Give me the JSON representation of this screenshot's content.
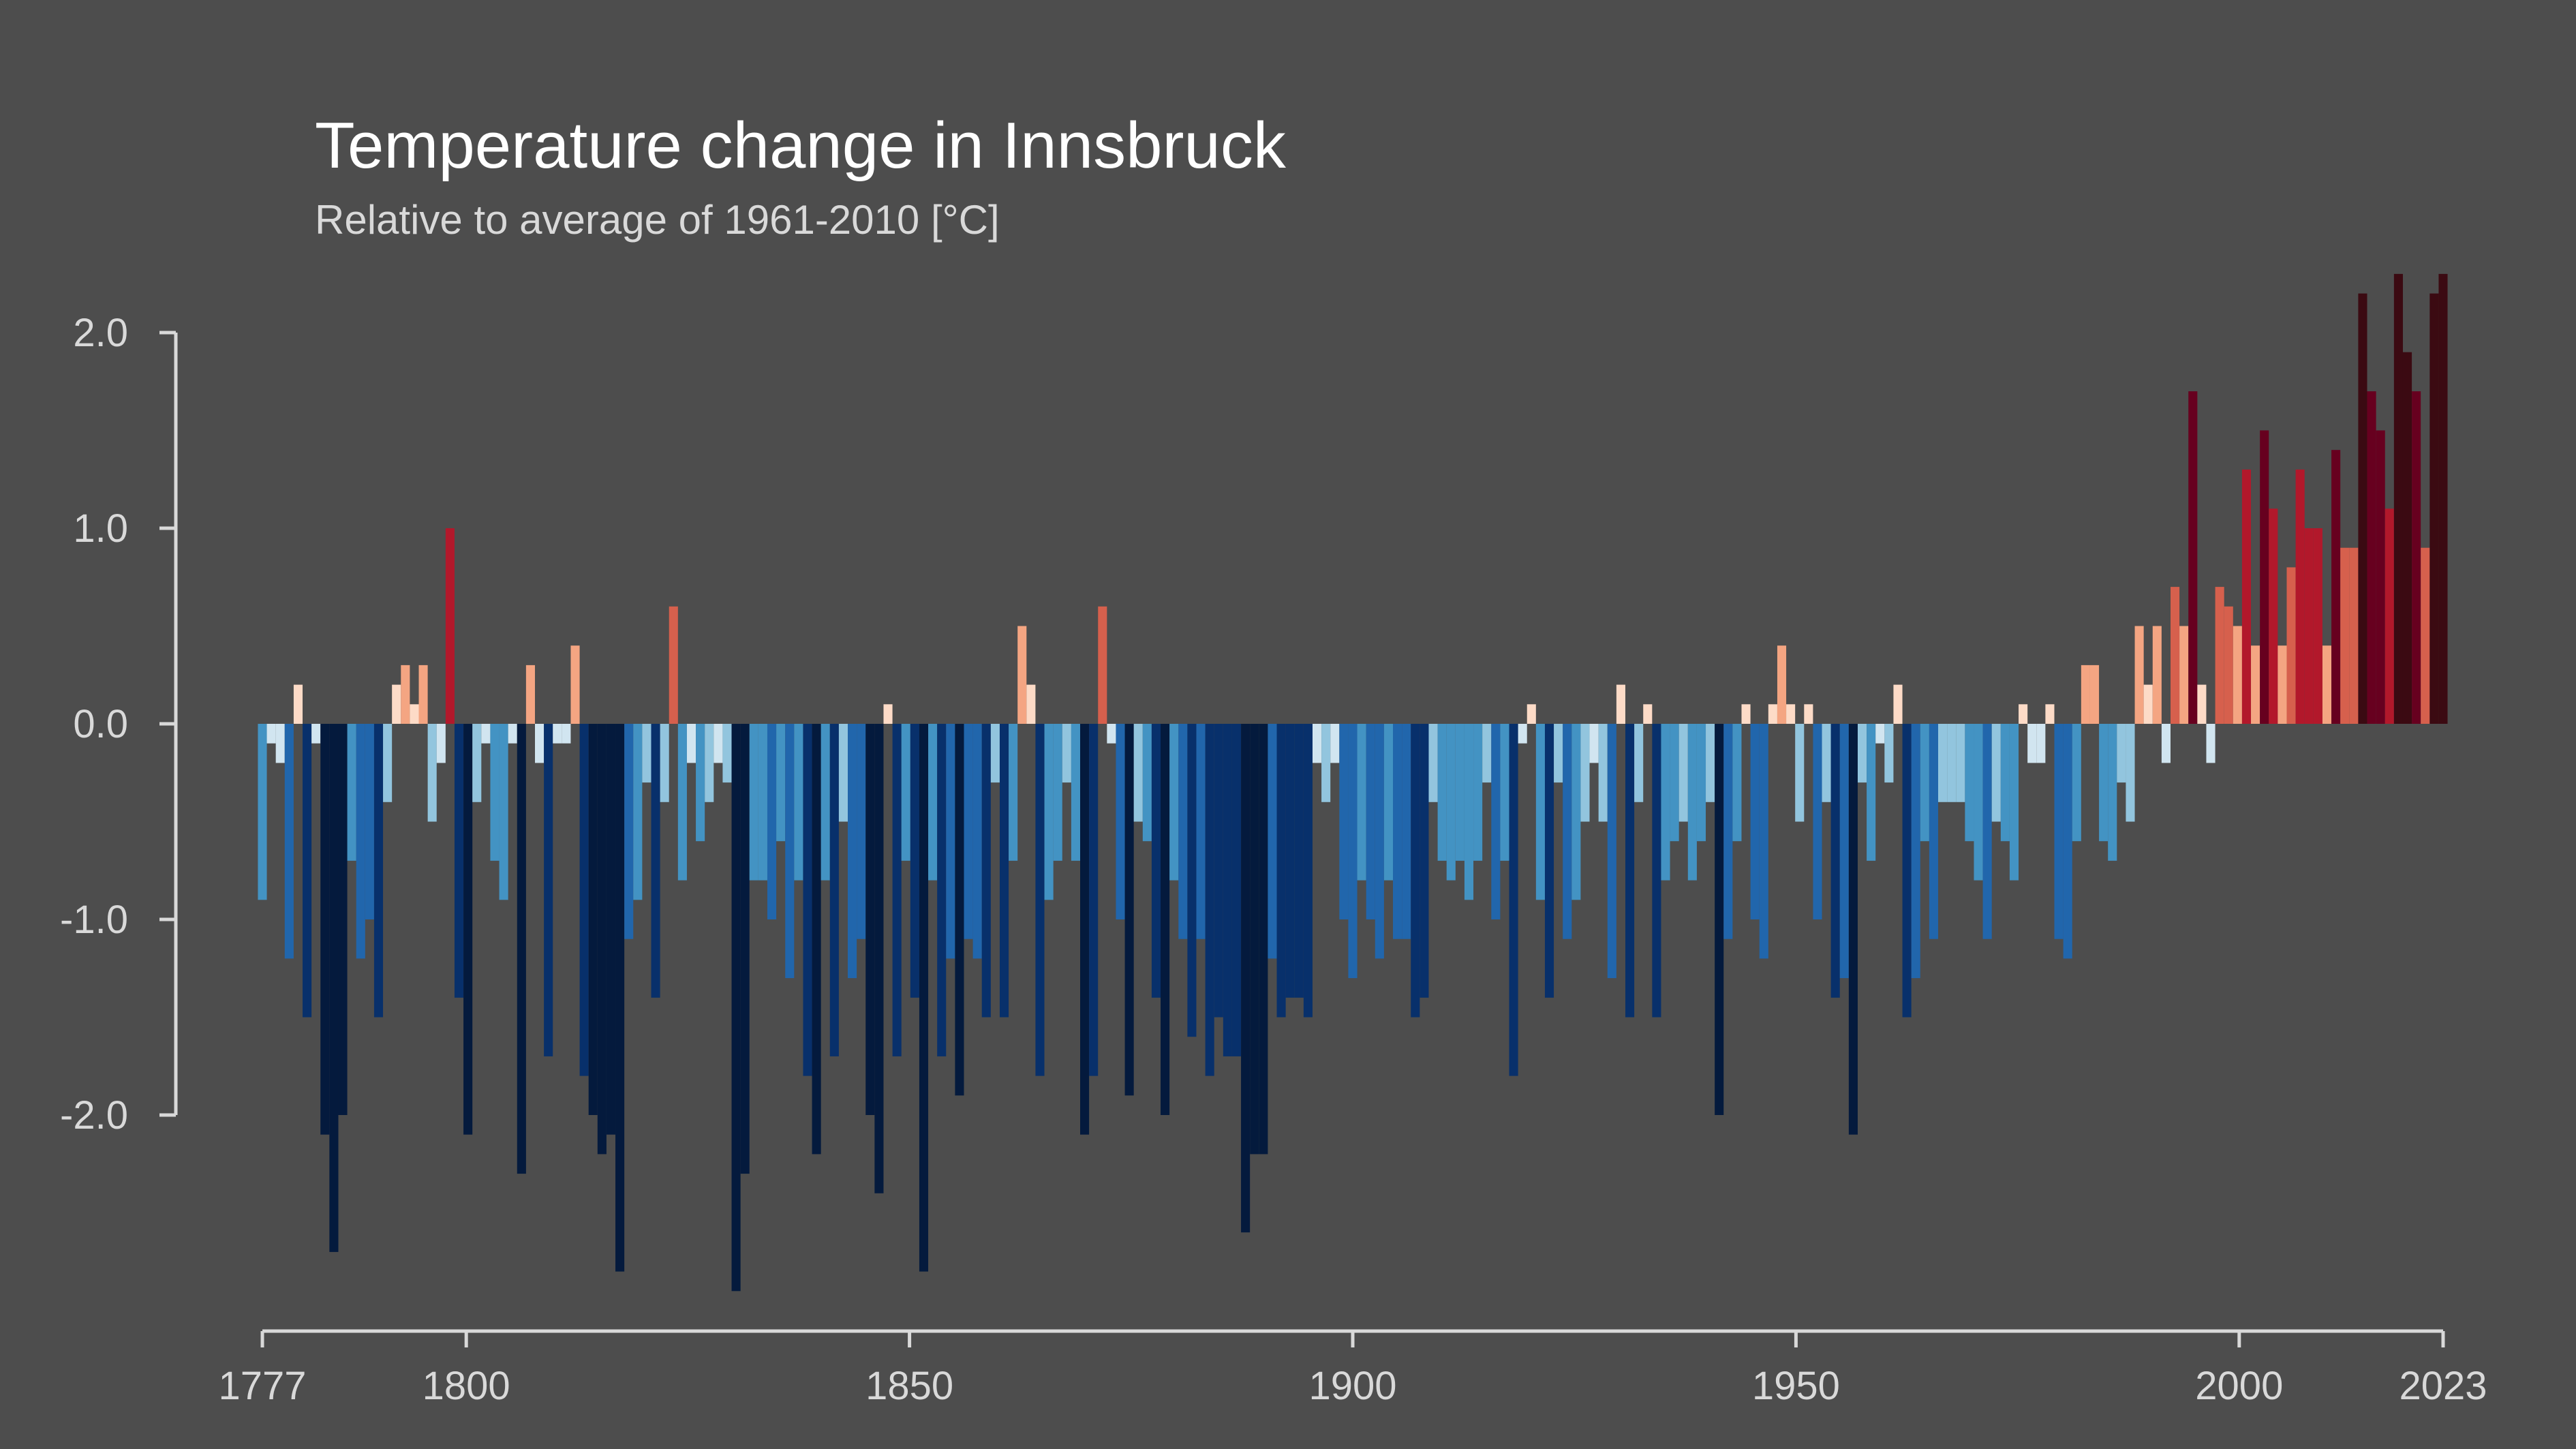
{
  "chart_data": {
    "type": "bar",
    "title": "Temperature change in Innsbruck",
    "subtitle": "Relative to average of 1961-2010  [°C]",
    "x_start": 1777,
    "x_end": 2023,
    "x_ticks": [
      "1777",
      "1800",
      "1850",
      "1900",
      "1950",
      "2000",
      "2023"
    ],
    "y_ticks": [
      "2.0",
      "1.0",
      "0.0",
      "-1.0",
      "-2.0"
    ],
    "ylim": [
      -3.1,
      2.35
    ],
    "colors": {
      "background": "#4d4d4d",
      "axis": "#d9d9d9",
      "warm_scale": [
        "#fddbc7",
        "#f4a582",
        "#d6604d",
        "#b2182b",
        "#67001f",
        "#3b0a12"
      ],
      "cool_scale": [
        "#d1e5f0",
        "#92c5de",
        "#4393c3",
        "#2166ac",
        "#08306b",
        "#041a3d"
      ]
    },
    "values": [
      -0.9,
      -0.1,
      -0.2,
      -1.2,
      0.2,
      -1.5,
      -0.1,
      -2.1,
      -2.7,
      -2.0,
      -0.7,
      -1.2,
      -1.0,
      -1.5,
      -0.4,
      0.2,
      0.3,
      0.1,
      0.3,
      -0.5,
      -0.2,
      1.0,
      -1.4,
      -2.1,
      -0.4,
      -0.1,
      -0.7,
      -0.9,
      -0.1,
      -2.3,
      0.3,
      -0.2,
      -1.7,
      -0.1,
      -0.1,
      0.4,
      -1.8,
      -2.0,
      -2.2,
      -2.1,
      -2.8,
      -1.1,
      -0.9,
      -0.3,
      -1.4,
      -0.4,
      0.6,
      -0.8,
      -0.2,
      -0.6,
      -0.4,
      -0.2,
      -0.3,
      -2.9,
      -2.3,
      -0.8,
      -0.8,
      -1.0,
      -0.6,
      -1.3,
      -0.8,
      -1.8,
      -2.2,
      -0.8,
      -1.7,
      -0.5,
      -1.3,
      -1.1,
      -2.0,
      -2.4,
      0.1,
      -1.7,
      -0.7,
      -1.4,
      -2.8,
      -0.8,
      -1.7,
      -1.2,
      -1.9,
      -1.1,
      -1.2,
      -1.5,
      -0.3,
      -1.5,
      -0.7,
      0.5,
      0.2,
      -1.8,
      -0.9,
      -0.7,
      -0.3,
      -0.7,
      -2.1,
      -1.8,
      0.6,
      -0.1,
      -1.0,
      -1.9,
      -0.5,
      -0.6,
      -1.4,
      -2.0,
      -0.8,
      -1.1,
      -1.6,
      -1.1,
      -1.8,
      -1.5,
      -1.7,
      -1.7,
      -2.6,
      -2.2,
      -2.2,
      -1.2,
      -1.5,
      -1.4,
      -1.4,
      -1.5,
      -0.2,
      -0.4,
      -0.2,
      -1.0,
      -1.3,
      -0.8,
      -1.0,
      -1.2,
      -0.8,
      -1.1,
      -1.1,
      -1.5,
      -1.4,
      -0.4,
      -0.7,
      -0.8,
      -0.7,
      -0.9,
      -0.7,
      -0.3,
      -1.0,
      -0.7,
      -1.8,
      -0.1,
      0.1,
      -0.9,
      -1.4,
      -0.3,
      -1.1,
      -0.9,
      -0.5,
      -0.2,
      -0.5,
      -1.3,
      0.2,
      -1.5,
      -0.4,
      0.1,
      -1.5,
      -0.8,
      -0.6,
      -0.5,
      -0.8,
      -0.6,
      -0.4,
      -2.0,
      -1.1,
      -0.6,
      0.1,
      -1.0,
      -1.2,
      0.1,
      0.4,
      0.1,
      -0.5,
      0.1,
      -1.0,
      -0.4,
      -1.4,
      -1.3,
      -2.1,
      -0.3,
      -0.7,
      -0.1,
      -0.3,
      0.2,
      -1.5,
      -1.3,
      -0.6,
      -1.1,
      -0.4,
      -0.4,
      -0.4,
      -0.6,
      -0.8,
      -1.1,
      -0.5,
      -0.6,
      -0.8,
      0.1,
      -0.2,
      -0.2,
      0.1,
      -1.1,
      -1.2,
      -0.6,
      0.3,
      0.3,
      -0.6,
      -0.7,
      -0.3,
      -0.5,
      0.5,
      0.2,
      0.5,
      -0.2,
      0.7,
      0.5,
      1.7,
      0.2,
      -0.2,
      0.7,
      0.6,
      0.5,
      1.3,
      0.4,
      1.5,
      1.1,
      0.4,
      0.8,
      1.3,
      1.0,
      1.0,
      0.4,
      1.4,
      0.9,
      0.9,
      2.2,
      1.7,
      1.5,
      1.1,
      2.3,
      1.9,
      1.7,
      0.9,
      2.2,
      2.3
    ]
  }
}
